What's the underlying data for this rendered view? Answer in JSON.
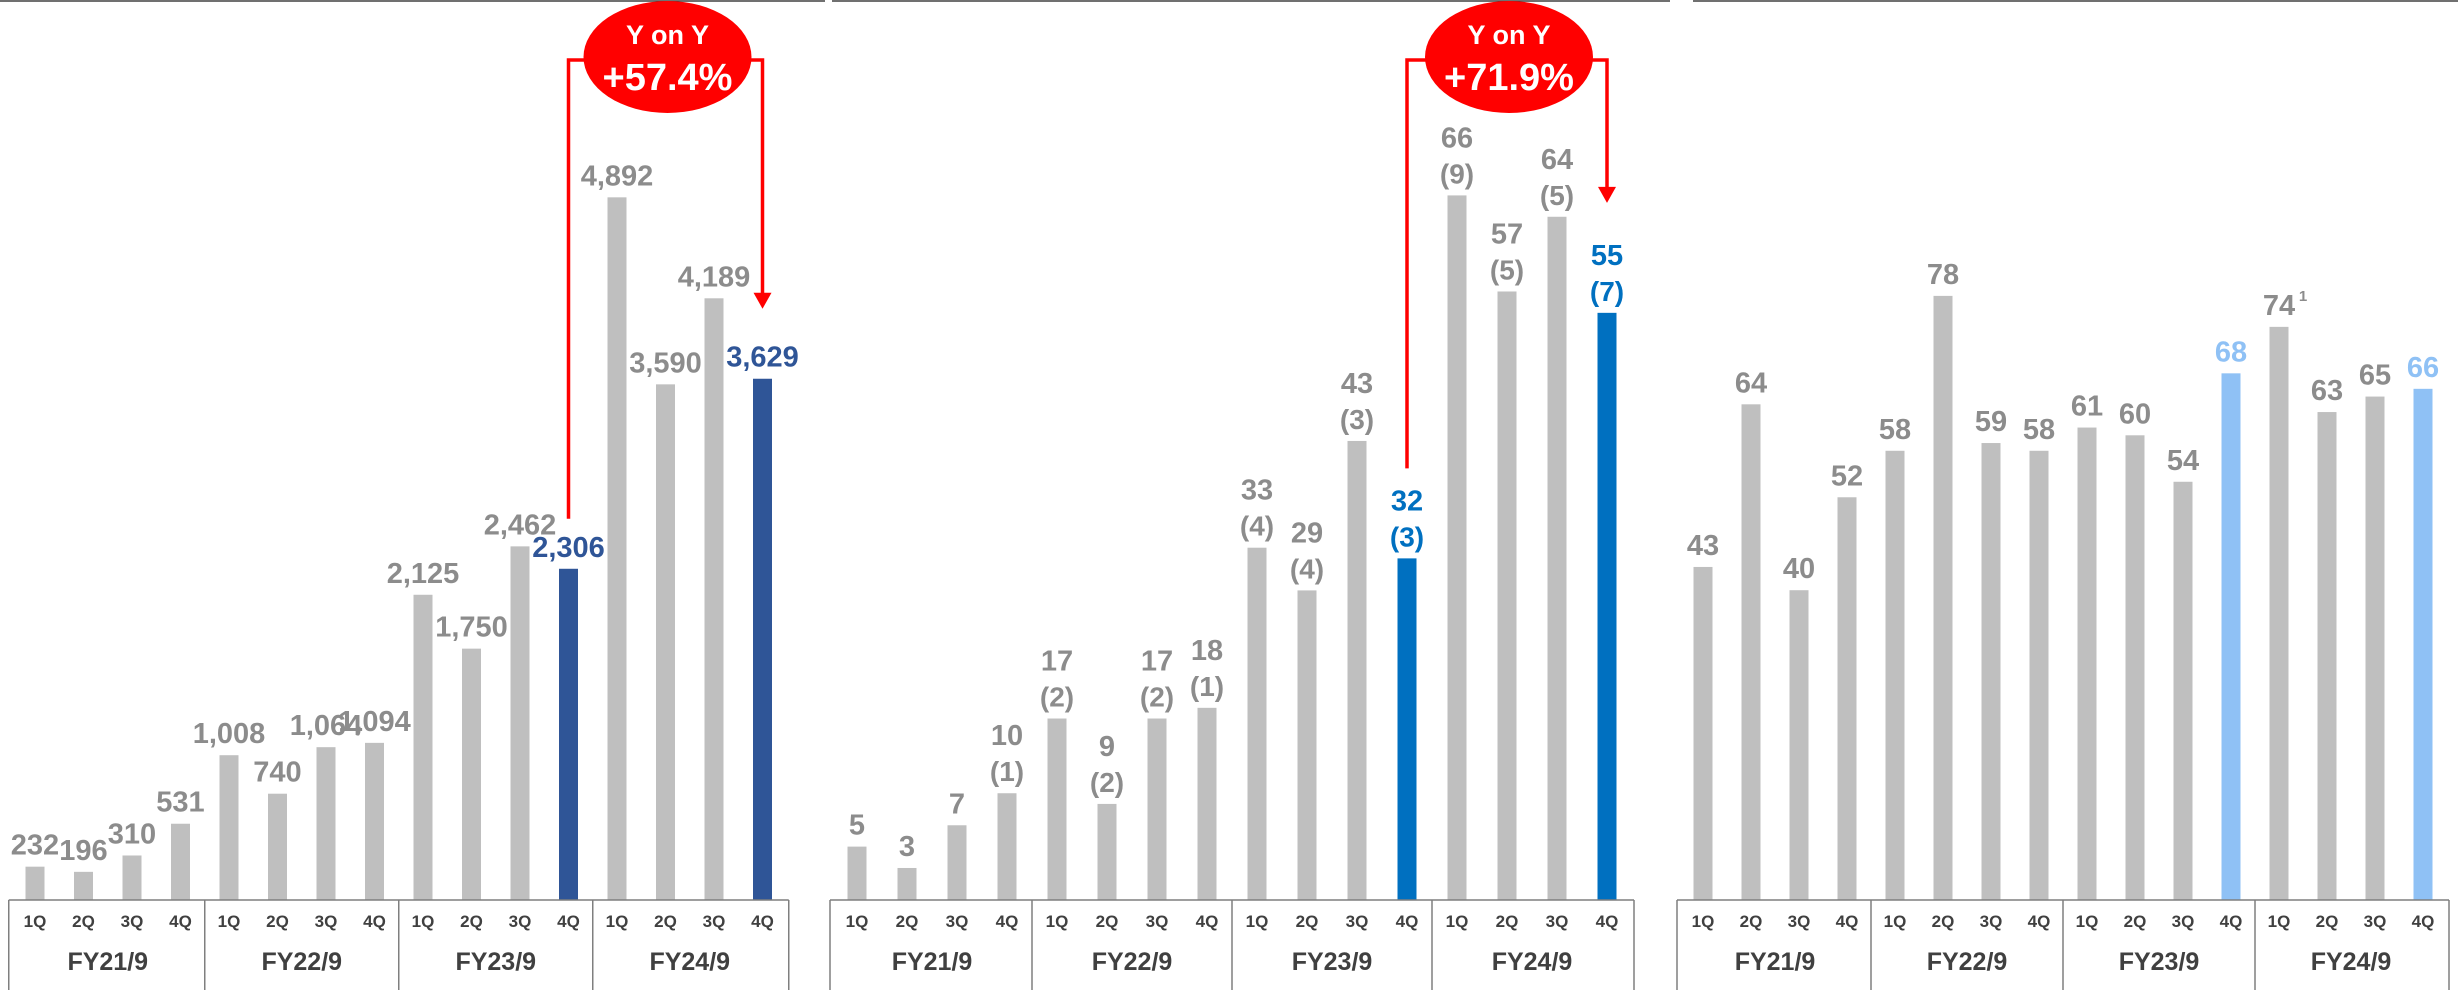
{
  "colors": {
    "bar": "#bfbfbf",
    "label": "#8c8c8c",
    "highlight_navy": "#2f5597",
    "highlight_blue": "#0070c0",
    "highlight_light": "#8fc1f5",
    "callout_red": "#ff0000",
    "axis_line": "#7f7f7f"
  },
  "chart_data": [
    {
      "type": "bar",
      "categories": [
        "1Q",
        "2Q",
        "3Q",
        "4Q",
        "1Q",
        "2Q",
        "3Q",
        "4Q",
        "1Q",
        "2Q",
        "3Q",
        "4Q",
        "1Q",
        "2Q",
        "3Q",
        "4Q"
      ],
      "groups": [
        "FY21/9",
        "FY22/9",
        "FY23/9",
        "FY24/9"
      ],
      "values": [
        232,
        196,
        310,
        531,
        1008,
        740,
        1064,
        1094,
        2125,
        1750,
        2462,
        2306,
        4892,
        3590,
        4189,
        3629
      ],
      "labels": [
        "232",
        "196",
        "310",
        "531",
        "1,008",
        "740",
        "1,064",
        "1,094",
        "2,125",
        "1,750",
        "2,462",
        "2,306",
        "4,892",
        "3,590",
        "4,189",
        "3,629"
      ],
      "highlight": [
        11,
        15
      ],
      "highlight_color": "#2f5597",
      "ylim": [
        0,
        5500
      ],
      "callout": {
        "title": "Y on Y",
        "value": "+57.4%",
        "from": 11,
        "to": 15
      }
    },
    {
      "type": "bar",
      "categories": [
        "1Q",
        "2Q",
        "3Q",
        "4Q",
        "1Q",
        "2Q",
        "3Q",
        "4Q",
        "1Q",
        "2Q",
        "3Q",
        "4Q",
        "1Q",
        "2Q",
        "3Q",
        "4Q"
      ],
      "groups": [
        "FY21/9",
        "FY22/9",
        "FY23/9",
        "FY24/9"
      ],
      "values": [
        5,
        3,
        7,
        10,
        17,
        9,
        17,
        18,
        33,
        29,
        43,
        32,
        66,
        57,
        64,
        55
      ],
      "labels": [
        "5",
        "3",
        "7",
        "10",
        "17",
        "9",
        "17",
        "18",
        "33",
        "29",
        "43",
        "32",
        "66",
        "57",
        "64",
        "55"
      ],
      "sub_labels": [
        "",
        "",
        "",
        "(1)",
        "(2)",
        "(2)",
        "(2)",
        "(1)",
        "(4)",
        "(4)",
        "(3)",
        "(3)",
        "(9)",
        "(5)",
        "(5)",
        "(7)"
      ],
      "highlight": [
        11,
        15
      ],
      "highlight_color": "#0070c0",
      "ylim": [
        0,
        74
      ],
      "callout": {
        "title": "Y on Y",
        "value": "+71.9%",
        "from": 11,
        "to": 15
      }
    },
    {
      "type": "bar",
      "categories": [
        "1Q",
        "2Q",
        "3Q",
        "4Q",
        "1Q",
        "2Q",
        "3Q",
        "4Q",
        "1Q",
        "2Q",
        "3Q",
        "4Q",
        "1Q",
        "2Q",
        "3Q",
        "4Q"
      ],
      "groups": [
        "FY21/9",
        "FY22/9",
        "FY23/9",
        "FY24/9"
      ],
      "values": [
        43,
        64,
        40,
        52,
        58,
        78,
        59,
        58,
        61,
        60,
        54,
        68,
        74,
        63,
        65,
        66
      ],
      "labels": [
        "43",
        "64",
        "40",
        "52",
        "58",
        "78",
        "59",
        "58",
        "61",
        "60",
        "54",
        "68",
        "74",
        "63",
        "65",
        "66"
      ],
      "superscripts": {
        "12": "1"
      },
      "highlight": [
        11,
        15
      ],
      "highlight_color": "#8fc1f5",
      "ylim": [
        0,
        102
      ]
    }
  ]
}
